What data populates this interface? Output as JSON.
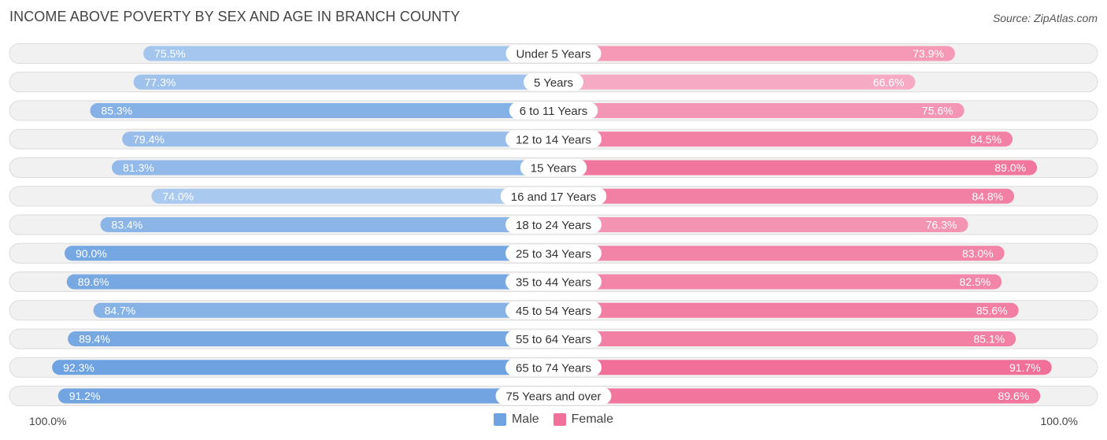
{
  "title": "INCOME ABOVE POVERTY BY SEX AND AGE IN BRANCH COUNTY",
  "source": "Source: ZipAtlas.com",
  "colors": {
    "male": "#6ea2e0",
    "male_light": "#a9c9ef",
    "female": "#f07099",
    "female_light": "#f7aac4"
  },
  "chart_data": {
    "type": "bar",
    "orientation": "horizontal-diverging",
    "title": "INCOME ABOVE POVERTY BY SEX AND AGE IN BRANCH COUNTY",
    "categories": [
      "Under 5 Years",
      "5 Years",
      "6 to 11 Years",
      "12 to 14 Years",
      "15 Years",
      "16 and 17 Years",
      "18 to 24 Years",
      "25 to 34 Years",
      "35 to 44 Years",
      "45 to 54 Years",
      "55 to 64 Years",
      "65 to 74 Years",
      "75 Years and over"
    ],
    "series": [
      {
        "name": "Male",
        "values": [
          75.5,
          77.3,
          85.3,
          79.4,
          81.3,
          74.0,
          83.4,
          90.0,
          89.6,
          84.7,
          89.4,
          92.3,
          91.2
        ]
      },
      {
        "name": "Female",
        "values": [
          73.9,
          66.6,
          75.6,
          84.5,
          89.0,
          84.8,
          76.3,
          83.0,
          82.5,
          85.6,
          85.1,
          91.7,
          89.6
        ]
      }
    ],
    "value_labels_male": [
      "75.5%",
      "77.3%",
      "85.3%",
      "79.4%",
      "81.3%",
      "74.0%",
      "83.4%",
      "90.0%",
      "89.6%",
      "84.7%",
      "89.4%",
      "92.3%",
      "91.2%"
    ],
    "value_labels_female": [
      "73.9%",
      "66.6%",
      "75.6%",
      "84.5%",
      "89.0%",
      "84.8%",
      "76.3%",
      "83.0%",
      "82.5%",
      "85.6%",
      "85.1%",
      "91.7%",
      "89.6%"
    ],
    "xlim": [
      0,
      100
    ],
    "axis_left_label": "100.0%",
    "axis_right_label": "100.0%",
    "legend": [
      "Male",
      "Female"
    ],
    "legend_position": "bottom-center"
  }
}
